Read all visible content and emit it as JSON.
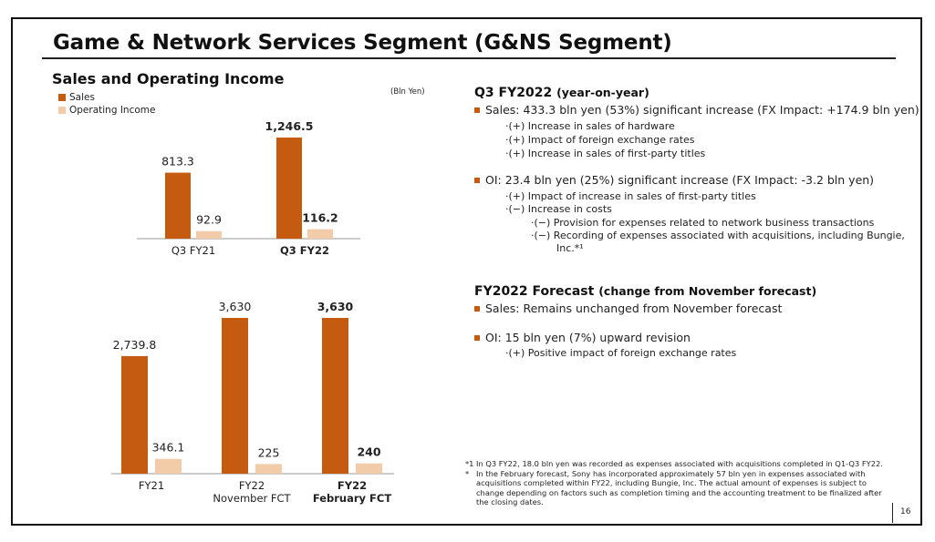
{
  "slide": {
    "title": "Game & Network Services Segment (G&NS Segment)",
    "subtitle": "Sales and Operating Income",
    "unit": "(Bln Yen)",
    "page_number": "16"
  },
  "legend": {
    "sales": "Sales",
    "oi": "Operating Income"
  },
  "colors": {
    "sales": "#C55A11",
    "oi": "#F2CBA8",
    "bullet": "#C55A11"
  },
  "chart_data": [
    {
      "type": "bar",
      "categories": [
        "Q3 FY21",
        "Q3 FY22"
      ],
      "category_lines": [
        [
          "Q3 FY21"
        ],
        [
          "Q3 FY22"
        ]
      ],
      "bold_category": [
        false,
        true
      ],
      "series": [
        {
          "name": "Sales",
          "values": [
            813.3,
            1246.5
          ],
          "labels": [
            "813.3",
            "1,246.5"
          ],
          "bold": [
            false,
            true
          ]
        },
        {
          "name": "Operating Income",
          "values": [
            92.9,
            116.2
          ],
          "labels": [
            "92.9",
            "116.2"
          ],
          "bold": [
            false,
            true
          ]
        }
      ],
      "unit": "Bln Yen"
    },
    {
      "type": "bar",
      "categories": [
        "FY21",
        "FY22 November FCT",
        "FY22 February FCT"
      ],
      "category_lines": [
        [
          "FY21"
        ],
        [
          "FY22",
          "November FCT"
        ],
        [
          "FY22",
          "February FCT"
        ]
      ],
      "bold_category": [
        false,
        false,
        true
      ],
      "series": [
        {
          "name": "Sales",
          "values": [
            2739.8,
            3630,
            3630
          ],
          "labels": [
            "2,739.8",
            "3,630",
            "3,630"
          ],
          "bold": [
            false,
            false,
            true
          ]
        },
        {
          "name": "Operating Income",
          "values": [
            346.1,
            225,
            240
          ],
          "labels": [
            "346.1",
            "225",
            "240"
          ],
          "bold": [
            false,
            false,
            true
          ]
        }
      ],
      "unit": "Bln Yen"
    }
  ],
  "right": {
    "q3": {
      "heading": "Q3 FY2022",
      "heading_sub": "(year-on-year)",
      "sales": "Sales: 433.3 bln yen (53%) significant increase (FX Impact: +174.9 bln yen)",
      "sales_points": [
        "·(+) Increase in sales of hardware",
        "·(+) Impact of foreign exchange rates",
        "·(+) Increase in sales of first-party titles"
      ],
      "oi": "OI:  23.4 bln yen (25%) significant increase (FX Impact: -3.2 bln yen)",
      "oi_points": [
        "·(+) Impact of increase in sales of first-party titles",
        "·(−) Increase in costs"
      ],
      "oi_subpoints": [
        "·(−) Provision for expenses related to network business transactions",
        "·(−) Recording of expenses associated with acquisitions, including Bungie,",
        "Inc.*¹"
      ]
    },
    "fy": {
      "heading": "FY2022 Forecast",
      "heading_sub": "(change from November forecast)",
      "sales": "Sales: Remains unchanged from November forecast",
      "oi": "OI: 15 bln yen (7%) upward revision",
      "oi_points": [
        "·(+) Positive impact of foreign exchange rates"
      ]
    }
  },
  "footnotes": [
    {
      "mark": "*1",
      "text": "In Q3 FY22, 18.0 bln yen was recorded as expenses associated with acquisitions completed in Q1-Q3 FY22."
    },
    {
      "mark": "*",
      "text": "In the February forecast, Sony has incorporated approximately 57 bln yen in expenses associated with acquisitions completed within FY22, including Bungie, Inc. The actual amount of expenses is subject to change depending on factors such as completion timing and the accounting treatment to be finalized after the closing dates."
    }
  ]
}
